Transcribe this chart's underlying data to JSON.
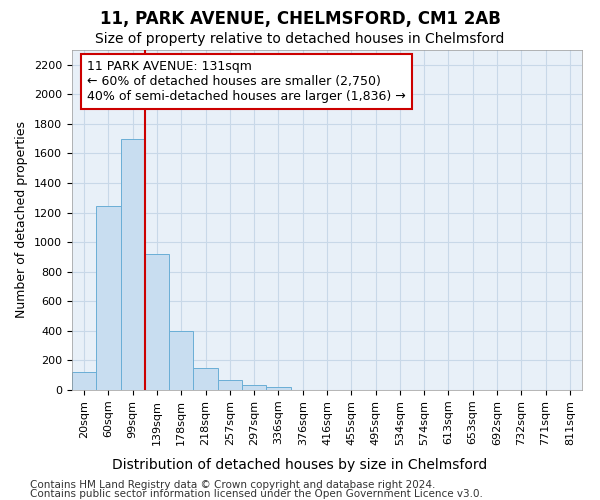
{
  "title": "11, PARK AVENUE, CHELMSFORD, CM1 2AB",
  "subtitle": "Size of property relative to detached houses in Chelmsford",
  "xlabel": "Distribution of detached houses by size in Chelmsford",
  "ylabel": "Number of detached properties",
  "bar_labels": [
    "20sqm",
    "60sqm",
    "99sqm",
    "139sqm",
    "178sqm",
    "218sqm",
    "257sqm",
    "297sqm",
    "336sqm",
    "376sqm",
    "416sqm",
    "455sqm",
    "495sqm",
    "534sqm",
    "574sqm",
    "613sqm",
    "653sqm",
    "692sqm",
    "732sqm",
    "771sqm",
    "811sqm"
  ],
  "bar_values": [
    120,
    1245,
    1700,
    920,
    400,
    150,
    65,
    35,
    20,
    0,
    0,
    0,
    0,
    0,
    0,
    0,
    0,
    0,
    0,
    0,
    0
  ],
  "bar_color": "#c8ddf0",
  "bar_edgecolor": "#6aaed6",
  "vline_color": "#cc0000",
  "vline_pos": 2.5,
  "ylim": [
    0,
    2300
  ],
  "yticks": [
    0,
    200,
    400,
    600,
    800,
    1000,
    1200,
    1400,
    1600,
    1800,
    2000,
    2200
  ],
  "annotation_line1": "11 PARK AVENUE: 131sqm",
  "annotation_line2": "← 60% of detached houses are smaller (2,750)",
  "annotation_line3": "40% of semi-detached houses are larger (1,836) →",
  "annotation_box_color": "#ffffff",
  "annotation_box_edgecolor": "#cc0000",
  "footer1": "Contains HM Land Registry data © Crown copyright and database right 2024.",
  "footer2": "Contains public sector information licensed under the Open Government Licence v3.0.",
  "bg_color": "#ffffff",
  "plot_bg_color": "#e8f0f8",
  "grid_color": "#c8d8e8",
  "title_fontsize": 12,
  "subtitle_fontsize": 10,
  "tick_fontsize": 8,
  "ylabel_fontsize": 9,
  "xlabel_fontsize": 10,
  "footer_fontsize": 7.5,
  "annotation_fontsize": 9
}
